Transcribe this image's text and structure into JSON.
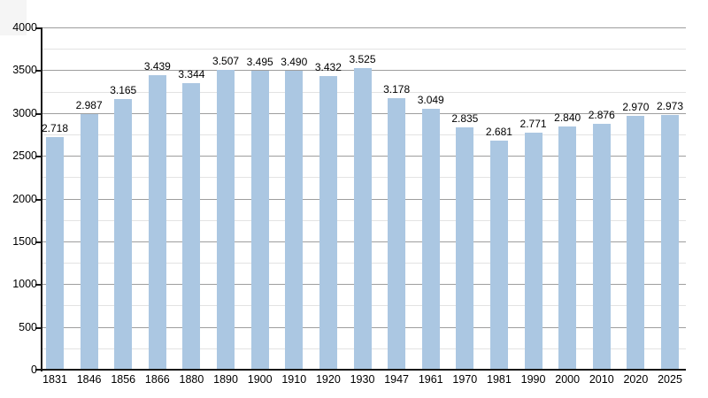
{
  "chart_data": {
    "type": "bar",
    "title": "",
    "xlabel": "",
    "ylabel": "",
    "categories": [
      "1831",
      "1846",
      "1856",
      "1866",
      "1880",
      "1890",
      "1900",
      "1910",
      "1920",
      "1930",
      "1947",
      "1961",
      "1970",
      "1981",
      "1990",
      "2000",
      "2010",
      "2020",
      "2025"
    ],
    "values": [
      2718,
      2987,
      3165,
      3439,
      3344,
      3507,
      3495,
      3490,
      3432,
      3525,
      3178,
      3049,
      2835,
      2681,
      2771,
      2840,
      2876,
      2970,
      2973
    ],
    "bar_labels": [
      "2.718",
      "2.987",
      "3.165",
      "3.439",
      "3.344",
      "3.507",
      "3.495",
      "3.490",
      "3.432",
      "3.525",
      "3.178",
      "3.049",
      "2.835",
      "2.681",
      "2.771",
      "2.840",
      "2.876",
      "2.970",
      "2.973"
    ],
    "ylim": [
      0,
      4000
    ],
    "y_ticks": [
      0,
      500,
      1000,
      1500,
      2000,
      2500,
      3000,
      3500,
      4000
    ],
    "minor_grid_step": 250,
    "grid": true,
    "legend": null,
    "colors": {
      "bar_fill": "#abc7e2",
      "major_grid": "#9e9e9e",
      "minor_grid": "#e3e3e3",
      "axis": "#1a1a1a",
      "label_text": "#000000"
    }
  }
}
